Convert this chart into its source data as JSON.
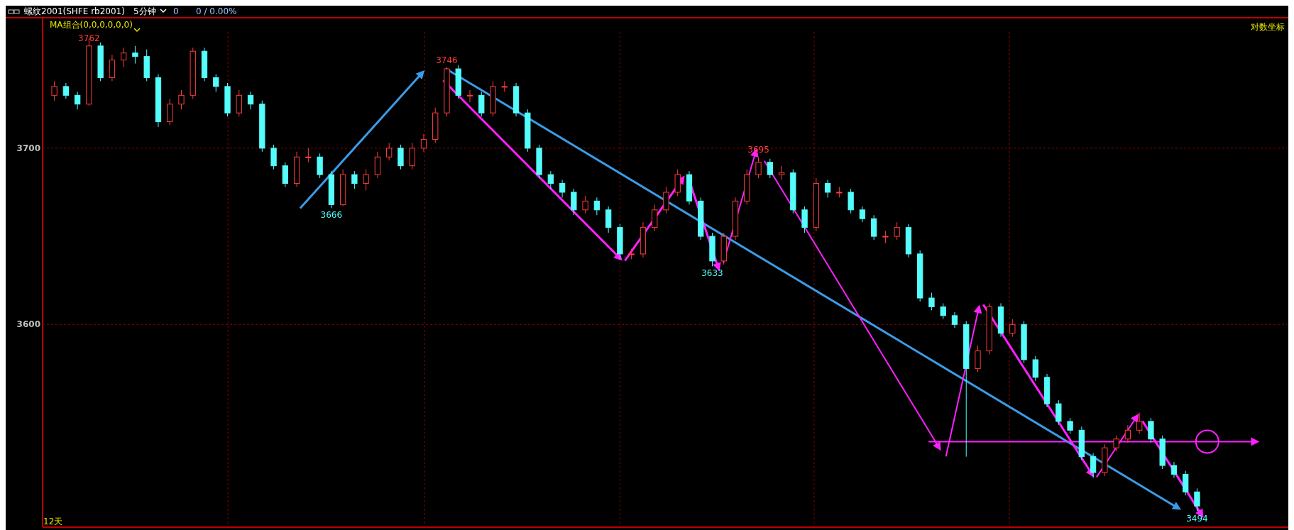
{
  "chart_data": {
    "type": "candlestick",
    "title": "螺纹2001(SHFE rb2001)",
    "subtitle": "5分钟",
    "annotations": [
      "0",
      "0 / 0.00%",
      "MA组合(0,0,0,0,0,0)",
      "对数坐标",
      "12天",
      {
        "text": "3762",
        "y": 3762
      },
      {
        "text": "3746",
        "y": 3746
      },
      {
        "text": "3666",
        "y": 3666
      },
      {
        "text": "3633",
        "y": 3633
      },
      {
        "text": "3695",
        "y": 3695
      },
      {
        "text": "3494",
        "y": 3494
      }
    ],
    "categories": [
      null,
      null,
      null,
      null,
      null,
      null,
      null,
      null,
      null,
      null,
      null,
      null,
      null,
      null,
      null,
      null,
      null,
      null,
      null,
      null,
      null,
      null,
      null,
      null,
      null,
      null,
      null,
      null,
      null,
      null,
      null,
      null,
      null,
      null,
      null,
      null,
      null,
      null,
      null,
      null,
      null,
      null,
      null,
      null,
      null,
      null,
      null,
      null,
      null,
      null,
      null,
      null,
      null,
      null,
      null,
      null,
      null,
      null,
      null,
      null,
      null,
      null,
      null,
      null,
      null,
      null,
      null,
      null,
      null,
      null,
      null,
      null,
      null,
      null,
      null,
      null,
      null,
      null,
      null,
      null,
      null,
      null,
      null,
      null,
      null,
      null,
      null,
      null,
      null,
      null,
      null,
      null,
      null,
      null,
      null,
      null,
      null,
      null,
      null,
      null
    ],
    "ohlc": [
      [
        3730,
        3738,
        3727,
        3735
      ],
      [
        3735,
        3737,
        3728,
        3730
      ],
      [
        3730,
        3732,
        3722,
        3725
      ],
      [
        3725,
        3762,
        3724,
        3758
      ],
      [
        3758,
        3760,
        3738,
        3740
      ],
      [
        3740,
        3753,
        3738,
        3750
      ],
      [
        3750,
        3757,
        3746,
        3754
      ],
      [
        3754,
        3758,
        3748,
        3752
      ],
      [
        3752,
        3756,
        3738,
        3740
      ],
      [
        3740,
        3742,
        3712,
        3715
      ],
      [
        3715,
        3728,
        3713,
        3725
      ],
      [
        3725,
        3733,
        3722,
        3730
      ],
      [
        3730,
        3757,
        3728,
        3755
      ],
      [
        3755,
        3757,
        3738,
        3740
      ],
      [
        3740,
        3742,
        3732,
        3735
      ],
      [
        3735,
        3737,
        3718,
        3720
      ],
      [
        3720,
        3733,
        3718,
        3730
      ],
      [
        3730,
        3732,
        3722,
        3725
      ],
      [
        3725,
        3727,
        3698,
        3700
      ],
      [
        3700,
        3702,
        3688,
        3690
      ],
      [
        3690,
        3692,
        3678,
        3680
      ],
      [
        3680,
        3698,
        3678,
        3695
      ],
      [
        3695,
        3700,
        3692,
        3695
      ],
      [
        3695,
        3697,
        3683,
        3685
      ],
      [
        3685,
        3687,
        3666,
        3668
      ],
      [
        3668,
        3688,
        3667,
        3685
      ],
      [
        3685,
        3687,
        3677,
        3680
      ],
      [
        3680,
        3688,
        3676,
        3685
      ],
      [
        3685,
        3698,
        3683,
        3695
      ],
      [
        3695,
        3703,
        3693,
        3700
      ],
      [
        3700,
        3702,
        3688,
        3690
      ],
      [
        3690,
        3703,
        3688,
        3700
      ],
      [
        3700,
        3708,
        3698,
        3705
      ],
      [
        3705,
        3723,
        3703,
        3720
      ],
      [
        3720,
        3746,
        3718,
        3745
      ],
      [
        3745,
        3747,
        3728,
        3730
      ],
      [
        3730,
        3733,
        3726,
        3730
      ],
      [
        3730,
        3732,
        3718,
        3720
      ],
      [
        3720,
        3738,
        3718,
        3735
      ],
      [
        3735,
        3738,
        3732,
        3735
      ],
      [
        3735,
        3737,
        3718,
        3720
      ],
      [
        3720,
        3722,
        3698,
        3700
      ],
      [
        3700,
        3702,
        3683,
        3685
      ],
      [
        3685,
        3687,
        3677,
        3680
      ],
      [
        3680,
        3682,
        3672,
        3675
      ],
      [
        3675,
        3677,
        3662,
        3665
      ],
      [
        3665,
        3673,
        3663,
        3670
      ],
      [
        3670,
        3672,
        3662,
        3665
      ],
      [
        3665,
        3667,
        3652,
        3655
      ],
      [
        3655,
        3657,
        3637,
        3640
      ],
      [
        3640,
        3643,
        3637,
        3640
      ],
      [
        3640,
        3658,
        3638,
        3655
      ],
      [
        3655,
        3668,
        3653,
        3665
      ],
      [
        3665,
        3678,
        3663,
        3675
      ],
      [
        3675,
        3688,
        3673,
        3685
      ],
      [
        3685,
        3687,
        3668,
        3670
      ],
      [
        3670,
        3672,
        3648,
        3650
      ],
      [
        3650,
        3652,
        3633,
        3636
      ],
      [
        3636,
        3652,
        3634,
        3650
      ],
      [
        3650,
        3672,
        3648,
        3670
      ],
      [
        3670,
        3688,
        3668,
        3685
      ],
      [
        3685,
        3695,
        3683,
        3692
      ],
      [
        3692,
        3694,
        3683,
        3685
      ],
      [
        3685,
        3690,
        3682,
        3686
      ],
      [
        3686,
        3688,
        3663,
        3665
      ],
      [
        3665,
        3667,
        3652,
        3655
      ],
      [
        3655,
        3683,
        3653,
        3680
      ],
      [
        3680,
        3682,
        3672,
        3675
      ],
      [
        3675,
        3678,
        3672,
        3675
      ],
      [
        3675,
        3677,
        3663,
        3665
      ],
      [
        3665,
        3667,
        3658,
        3660
      ],
      [
        3660,
        3662,
        3648,
        3650
      ],
      [
        3650,
        3653,
        3646,
        3650
      ],
      [
        3650,
        3658,
        3648,
        3655
      ],
      [
        3655,
        3657,
        3638,
        3640
      ],
      [
        3640,
        3642,
        3613,
        3615
      ],
      [
        3615,
        3618,
        3608,
        3610
      ],
      [
        3610,
        3612,
        3603,
        3605
      ],
      [
        3605,
        3607,
        3598,
        3600
      ],
      [
        3600,
        3602,
        3525,
        3575
      ],
      [
        3575,
        3588,
        3573,
        3585
      ],
      [
        3585,
        3612,
        3583,
        3610
      ],
      [
        3610,
        3612,
        3593,
        3595
      ],
      [
        3595,
        3603,
        3593,
        3600
      ],
      [
        3600,
        3602,
        3578,
        3580
      ],
      [
        3580,
        3582,
        3568,
        3570
      ],
      [
        3570,
        3572,
        3553,
        3555
      ],
      [
        3555,
        3557,
        3543,
        3545
      ],
      [
        3545,
        3547,
        3538,
        3540
      ],
      [
        3540,
        3542,
        3523,
        3525
      ],
      [
        3525,
        3527,
        3513,
        3516
      ],
      [
        3516,
        3532,
        3514,
        3530
      ],
      [
        3530,
        3537,
        3528,
        3535
      ],
      [
        3535,
        3543,
        3533,
        3540
      ],
      [
        3540,
        3550,
        3538,
        3545
      ],
      [
        3545,
        3547,
        3533,
        3535
      ],
      [
        3535,
        3537,
        3518,
        3520
      ],
      [
        3520,
        3522,
        3513,
        3515
      ],
      [
        3515,
        3517,
        3503,
        3505
      ],
      [
        3505,
        3507,
        3494,
        3497
      ]
    ],
    "ylim": [
      3485,
      3774
    ],
    "yticks": [
      3600,
      3700
    ],
    "grid": true
  }
}
